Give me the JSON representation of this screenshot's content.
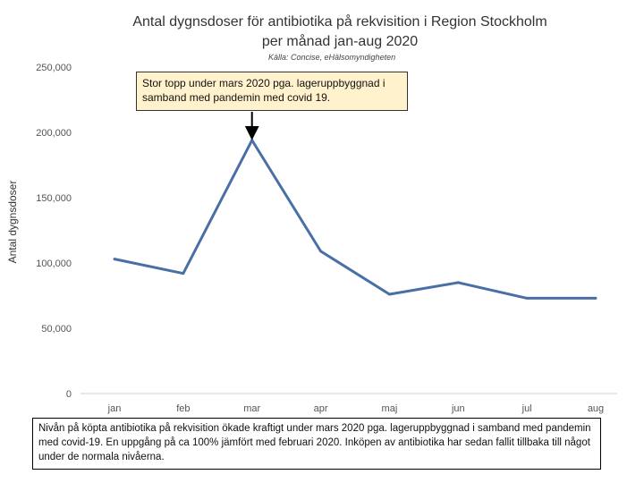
{
  "chart_data": {
    "type": "line",
    "title_line1": "Antal dygnsdoser för antibiotika på rekvisition i Region Stockholm",
    "title_line2": "per månad jan-aug 2020",
    "source": "Källa: Concise, eHälsomyndigheten",
    "ylabel": "Antal dygnsdoser",
    "xlabel": "",
    "categories": [
      "jan",
      "feb",
      "mar",
      "apr",
      "maj",
      "jun",
      "jul",
      "aug"
    ],
    "series": [
      {
        "values": [
          103000,
          92000,
          194000,
          109000,
          76000,
          85000,
          73000,
          73000
        ]
      }
    ],
    "ylim": [
      0,
      250000
    ],
    "yticks": [
      0,
      50000,
      100000,
      150000,
      200000,
      250000
    ],
    "ytick_labels": [
      "0",
      "50,000",
      "100,000",
      "150,000",
      "200,000",
      "250,000"
    ],
    "grid": false,
    "line_color": "#4a6fa5",
    "annotation": {
      "text": "Stor topp under mars 2020 pga. lageruppbyggnad i samband med pandemin med covid 19.",
      "target_category": "mar"
    },
    "footnote": "Nivån på köpta antibiotika på rekvisition ökade kraftigt under mars 2020 pga. lageruppbyggnad i samband med pandemin med covid-19. En uppgång på ca 100% jämfört med februari 2020. Inköpen av antibiotika har sedan fallit tillbaka till något under de normala nivåerna."
  }
}
